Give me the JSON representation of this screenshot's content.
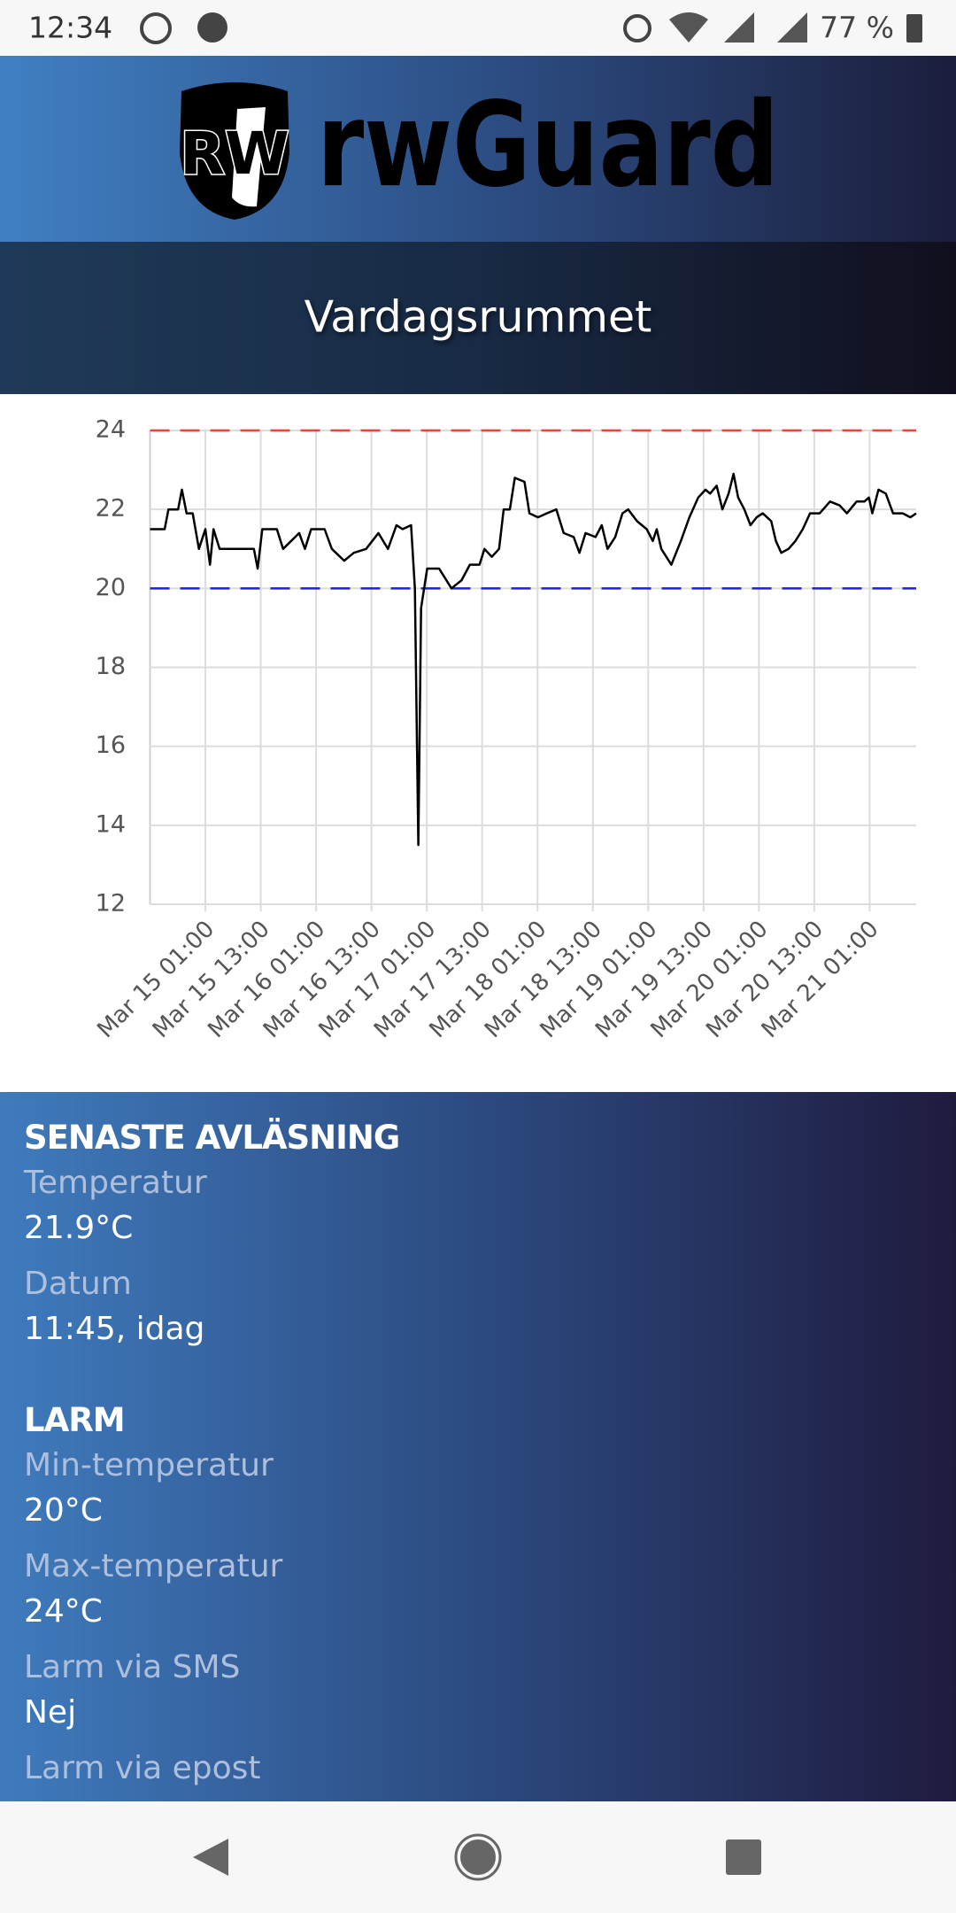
{
  "status_bar": {
    "time": "12:34",
    "battery": "77 %"
  },
  "header": {
    "logo_badge": "RW",
    "logo_text": "rwGuard",
    "title": "Vardagsrummet"
  },
  "chart_data": {
    "type": "line",
    "color": "#000000",
    "x": [
      "Mar 14 13:00",
      "Mar 14 16:10",
      "Mar 14 17:00",
      "Mar 14 19:05",
      "Mar 14 19:55",
      "Mar 14 20:55",
      "Mar 14 22:15",
      "Mar 14 23:35",
      "Mar 15 01:00",
      "Mar 15 02:00",
      "Mar 15 02:45",
      "Mar 15 04:05",
      "Mar 15 05:25",
      "Mar 15 11:30",
      "Mar 15 12:20",
      "Mar 15 13:20",
      "Mar 15 16:30",
      "Mar 15 17:50",
      "Mar 15 21:20",
      "Mar 15 22:35",
      "Mar 15 23:55",
      "Mar 16 02:50",
      "Mar 16 04:25",
      "Mar 16 07:05",
      "Mar 16 09:10",
      "Mar 16 11:50",
      "Mar 16 14:30",
      "Mar 16 16:35",
      "Mar 16 18:25",
      "Mar 16 19:45",
      "Mar 16 21:35",
      "Mar 16 22:25",
      "Mar 16 23:10",
      "Mar 16 23:45",
      "Mar 17 01:05",
      "Mar 17 03:40",
      "Mar 17 06:20",
      "Mar 17 08:30",
      "Mar 17 10:20",
      "Mar 17 12:25",
      "Mar 17 13:30",
      "Mar 17 15:05",
      "Mar 17 16:40",
      "Mar 17 17:40",
      "Mar 17 19:00",
      "Mar 17 20:05",
      "Mar 17 22:10",
      "Mar 17 23:15",
      "Mar 18 01:05",
      "Mar 18 03:00",
      "Mar 18 05:05",
      "Mar 18 06:40",
      "Mar 18 08:50",
      "Mar 18 10:05",
      "Mar 18 11:25",
      "Mar 18 13:35",
      "Mar 18 14:55",
      "Mar 18 16:10",
      "Mar 18 17:50",
      "Mar 18 19:25",
      "Mar 18 20:40",
      "Mar 18 22:35",
      "Mar 19 00:40",
      "Mar 19 02:00",
      "Mar 19 02:50",
      "Mar 19 03:50",
      "Mar 19 06:00",
      "Mar 19 08:05",
      "Mar 19 09:55",
      "Mar 19 11:50",
      "Mar 19 13:25",
      "Mar 19 14:25",
      "Mar 19 15:50",
      "Mar 19 17:05",
      "Mar 19 18:25",
      "Mar 19 19:30",
      "Mar 19 20:30",
      "Mar 19 21:50",
      "Mar 19 23:10",
      "Mar 20 00:30",
      "Mar 20 01:50",
      "Mar 20 03:40",
      "Mar 20 04:40",
      "Mar 20 05:50",
      "Mar 20 07:25",
      "Mar 20 08:55",
      "Mar 20 10:30",
      "Mar 20 12:05",
      "Mar 20 14:10",
      "Mar 20 16:25",
      "Mar 20 18:30",
      "Mar 20 20:05",
      "Mar 20 22:10",
      "Mar 20 23:50",
      "Mar 21 00:50",
      "Mar 21 01:35",
      "Mar 21 02:55",
      "Mar 21 04:30",
      "Mar 21 06:05",
      "Mar 21 08:10",
      "Mar 21 09:50",
      "Mar 21 11:05"
    ],
    "values": [
      21.5,
      21.5,
      22.0,
      22.0,
      22.5,
      21.9,
      21.9,
      21.0,
      21.5,
      20.6,
      21.5,
      21.0,
      21.0,
      21.0,
      20.5,
      21.5,
      21.5,
      21.0,
      21.4,
      21.0,
      21.5,
      21.5,
      21.0,
      20.7,
      20.9,
      21.0,
      21.4,
      21.0,
      21.6,
      21.5,
      21.6,
      20.0,
      13.5,
      19.5,
      20.5,
      20.5,
      20.0,
      20.2,
      20.6,
      20.6,
      21.0,
      20.8,
      21.0,
      22.0,
      22.0,
      22.8,
      22.7,
      21.9,
      21.8,
      21.9,
      22.0,
      21.4,
      21.3,
      20.9,
      21.4,
      21.3,
      21.6,
      21.0,
      21.3,
      21.9,
      22.0,
      21.7,
      21.5,
      21.2,
      21.5,
      21.0,
      20.6,
      21.2,
      21.8,
      22.3,
      22.5,
      22.4,
      22.6,
      22.0,
      22.4,
      22.9,
      22.3,
      22.0,
      21.6,
      21.8,
      21.9,
      21.7,
      21.2,
      20.9,
      21.0,
      21.2,
      21.5,
      21.9,
      21.9,
      22.2,
      22.1,
      21.9,
      22.2,
      22.2,
      22.3,
      21.9,
      22.5,
      22.4,
      21.9,
      21.9,
      21.8,
      21.9
    ],
    "xlim": [
      "Mar 14 13:00",
      "Mar 21 11:05"
    ],
    "xticks": [
      "Mar 15 01:00",
      "Mar 15 13:00",
      "Mar 16 01:00",
      "Mar 16 13:00",
      "Mar 17 01:00",
      "Mar 17 13:00",
      "Mar 18 01:00",
      "Mar 18 13:00",
      "Mar 19 01:00",
      "Mar 19 13:00",
      "Mar 20 01:00",
      "Mar 20 13:00",
      "Mar 21 01:00"
    ],
    "ylim": [
      12,
      24
    ],
    "yticks": [
      12,
      14,
      16,
      18,
      20,
      22,
      24
    ],
    "grid": true,
    "reference_lines": [
      {
        "value": 24,
        "color": "#e2463c"
      },
      {
        "value": 20,
        "color": "#1e1ee6"
      }
    ]
  },
  "sections": [
    {
      "heading": "SENASTE AVLÄSNING",
      "fields": [
        {
          "label": "Temperatur",
          "value": "21.9°C"
        },
        {
          "label": "Datum",
          "value": "11:45, idag"
        }
      ]
    },
    {
      "heading": "LARM",
      "fields": [
        {
          "label": "Min-temperatur",
          "value": "20°C"
        },
        {
          "label": "Max-temperatur",
          "value": "24°C"
        },
        {
          "label": "Larm via SMS",
          "value": "Nej"
        },
        {
          "label": "Larm via epost"
        }
      ]
    }
  ]
}
